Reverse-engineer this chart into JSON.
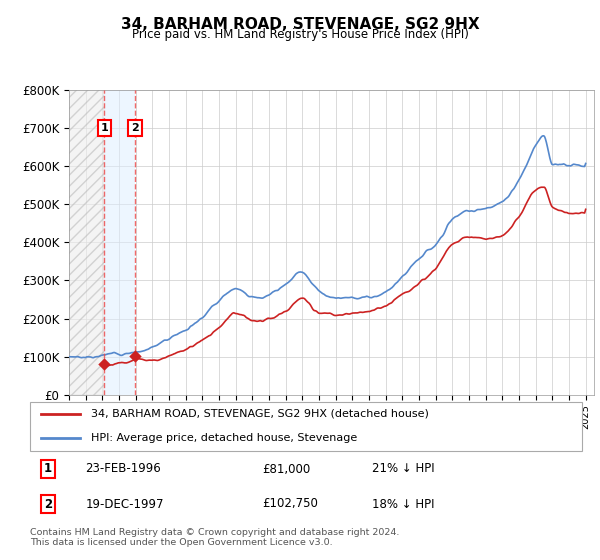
{
  "title": "34, BARHAM ROAD, STEVENAGE, SG2 9HX",
  "subtitle": "Price paid vs. HM Land Registry's House Price Index (HPI)",
  "ylim": [
    0,
    800000
  ],
  "yticks": [
    0,
    100000,
    200000,
    300000,
    400000,
    500000,
    600000,
    700000,
    800000
  ],
  "ytick_labels": [
    "£0",
    "£100K",
    "£200K",
    "£300K",
    "£400K",
    "£500K",
    "£600K",
    "£700K",
    "£800K"
  ],
  "hpi_color": "#5588cc",
  "price_color": "#cc2222",
  "marker_color": "#cc2222",
  "sale1_date": 1996.12,
  "sale1_price": 81000,
  "sale2_date": 1997.96,
  "sale2_price": 102750,
  "legend_line1": "34, BARHAM ROAD, STEVENAGE, SG2 9HX (detached house)",
  "legend_line2": "HPI: Average price, detached house, Stevenage",
  "footnote": "Contains HM Land Registry data © Crown copyright and database right 2024.\nThis data is licensed under the Open Government Licence v3.0.",
  "shade_color": "#ddeeff",
  "hpi_knots_x": [
    1994.0,
    1995.0,
    1996.0,
    1997.0,
    1998.0,
    1999.0,
    2000.0,
    2001.0,
    2002.0,
    2003.0,
    2004.0,
    2005.0,
    2006.0,
    2007.0,
    2008.0,
    2009.0,
    2010.0,
    2011.0,
    2012.0,
    2013.0,
    2014.0,
    2015.0,
    2016.0,
    2017.0,
    2018.0,
    2019.0,
    2020.0,
    2021.0,
    2022.0,
    2022.5,
    2023.0,
    2024.0,
    2025.0
  ],
  "hpi_knots_y": [
    100000,
    103000,
    105000,
    110000,
    118000,
    132000,
    155000,
    180000,
    220000,
    270000,
    305000,
    290000,
    295000,
    315000,
    350000,
    305000,
    290000,
    295000,
    295000,
    310000,
    340000,
    380000,
    420000,
    490000,
    510000,
    520000,
    530000,
    590000,
    680000,
    710000,
    640000,
    630000,
    620000
  ],
  "red_knots_x": [
    1994.0,
    1995.0,
    1996.12,
    1997.96,
    1999.0,
    2000.0,
    2001.0,
    2002.0,
    2003.0,
    2004.0,
    2005.0,
    2006.0,
    2007.0,
    2008.0,
    2009.0,
    2010.0,
    2011.0,
    2012.0,
    2013.0,
    2014.0,
    2015.0,
    2016.0,
    2017.0,
    2018.0,
    2019.0,
    2020.0,
    2021.0,
    2022.0,
    2022.5,
    2023.0,
    2024.0,
    2025.0
  ],
  "red_knots_y": [
    75000,
    78000,
    81000,
    102750,
    108000,
    126000,
    148000,
    170000,
    210000,
    248000,
    235000,
    242000,
    257000,
    290000,
    255000,
    245000,
    248000,
    250000,
    260000,
    283000,
    310000,
    340000,
    400000,
    420000,
    420000,
    432000,
    480000,
    550000,
    560000,
    510000,
    500000,
    502000
  ],
  "xlim_left": 1994.0,
  "xlim_right": 2025.5
}
